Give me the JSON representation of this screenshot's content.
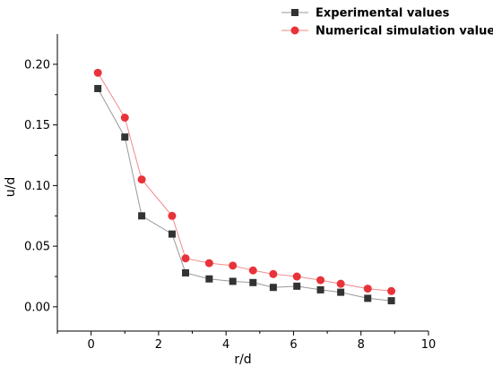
{
  "chart_data": {
    "type": "line",
    "xlabel": "r/d",
    "ylabel": "u/d",
    "xlim": [
      -1,
      10
    ],
    "ylim": [
      -0.02,
      0.225
    ],
    "x_ticks": [
      0,
      2,
      4,
      6,
      8,
      10
    ],
    "x_tick_labels": [
      "0",
      "2",
      "4",
      "6",
      "8",
      "10"
    ],
    "y_ticks": [
      0.0,
      0.05,
      0.1,
      0.15,
      0.2
    ],
    "y_tick_labels": [
      "0.00",
      "0.05",
      "0.10",
      "0.15",
      "0.20"
    ],
    "legend_position": "top-right",
    "grid": false,
    "series": [
      {
        "name": "Experimental values",
        "marker": "square",
        "color": "#333333",
        "line_color": "#999999",
        "points": [
          [
            0.2,
            0.18
          ],
          [
            1.0,
            0.14
          ],
          [
            1.5,
            0.075
          ],
          [
            2.4,
            0.06
          ],
          [
            2.8,
            0.028
          ],
          [
            3.5,
            0.023
          ],
          [
            4.2,
            0.021
          ],
          [
            4.8,
            0.02
          ],
          [
            5.4,
            0.016
          ],
          [
            6.1,
            0.017
          ],
          [
            6.8,
            0.014
          ],
          [
            7.4,
            0.012
          ],
          [
            8.2,
            0.007
          ],
          [
            8.9,
            0.005
          ]
        ]
      },
      {
        "name": "Numerical simulation values",
        "marker": "circle",
        "color": "#e8333a",
        "line_color": "#f08a8a",
        "points": [
          [
            0.2,
            0.193
          ],
          [
            1.0,
            0.156
          ],
          [
            1.5,
            0.105
          ],
          [
            2.4,
            0.075
          ],
          [
            2.8,
            0.04
          ],
          [
            3.5,
            0.036
          ],
          [
            4.2,
            0.034
          ],
          [
            4.8,
            0.03
          ],
          [
            5.4,
            0.027
          ],
          [
            6.1,
            0.025
          ],
          [
            6.8,
            0.022
          ],
          [
            7.4,
            0.019
          ],
          [
            8.2,
            0.015
          ],
          [
            8.9,
            0.013
          ]
        ]
      }
    ]
  }
}
